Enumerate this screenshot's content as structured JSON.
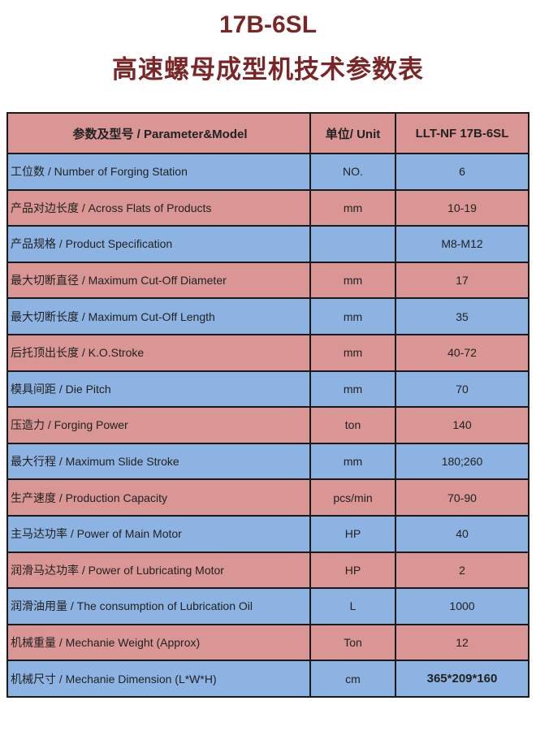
{
  "title": "17B-6SL",
  "subtitle": "高速螺母成型机技术参数表",
  "colors": {
    "pink": "#d99694",
    "blue": "#8db3e2",
    "title": "#7a2626"
  },
  "header": {
    "param": "参数及型号 / Parameter&Model",
    "unit": "单位/ Unit",
    "model": "LLT-NF  17B-6SL"
  },
  "rows": [
    {
      "param": "工位数 / Number of Forging Station",
      "unit": "NO.",
      "value": "6"
    },
    {
      "param": "产品对边长度 / Across Flats of Products",
      "unit": "mm",
      "value": "10-19"
    },
    {
      "param": "产品规格 / Product Specification",
      "unit": "",
      "value": "M8-M12"
    },
    {
      "param": "最大切断直径 / Maximum Cut-Off Diameter",
      "unit": "mm",
      "value": "17"
    },
    {
      "param": "最大切断长度 / Maximum  Cut-Off Length",
      "unit": "mm",
      "value": "35"
    },
    {
      "param": "后托顶出长度 / K.O.Stroke",
      "unit": "mm",
      "value": "40-72"
    },
    {
      "param": "模具间距 / Die Pitch",
      "unit": "mm",
      "value": "70"
    },
    {
      "param": "压造力 / Forging Power",
      "unit": "ton",
      "value": "140"
    },
    {
      "param": "最大行程 / Maximum Slide Stroke",
      "unit": "mm",
      "value": "180;260"
    },
    {
      "param": "生产速度 / Production Capacity",
      "unit": "pcs/min",
      "value": "70-90"
    },
    {
      "param": "主马达功率 / Power of Main Motor",
      "unit": "HP",
      "value": "40"
    },
    {
      "param": "润滑马达功率 / Power of Lubricating Motor",
      "unit": "HP",
      "value": "2"
    },
    {
      "param": "润滑油用量 / The consumption of Lubrication Oil",
      "unit": "L",
      "value": "1000"
    },
    {
      "param": "机械重量 / Mechanie Weight (Approx)",
      "unit": "Ton",
      "value": "12"
    },
    {
      "param": "机械尺寸  / Mechanie Dimension (L*W*H)",
      "unit": "cm",
      "value": "365*209*160"
    }
  ]
}
